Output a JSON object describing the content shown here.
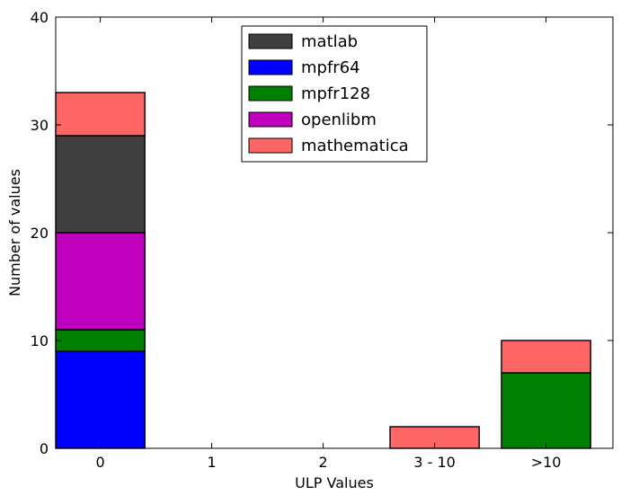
{
  "chart_data": {
    "type": "bar",
    "stacked": true,
    "xlabel": "ULP Values",
    "ylabel": "Number of values",
    "categories": [
      "0",
      "1",
      "2",
      "3 - 10",
      ">10"
    ],
    "ylim": [
      0,
      40
    ],
    "yticks": [
      0,
      10,
      20,
      30,
      40
    ],
    "grid": false,
    "legend_position": "top-center",
    "stack_order": [
      "mpfr64",
      "mpfr128",
      "openlibm",
      "matlab",
      "mathematica"
    ],
    "series": [
      {
        "name": "matlab",
        "color": "#404040",
        "values": [
          9,
          0,
          0,
          0,
          0
        ]
      },
      {
        "name": "mpfr64",
        "color": "#0000ff",
        "values": [
          9,
          0,
          0,
          0,
          0
        ]
      },
      {
        "name": "mpfr128",
        "color": "#008000",
        "values": [
          2,
          0,
          0,
          0,
          7
        ]
      },
      {
        "name": "openlibm",
        "color": "#bf00bf",
        "values": [
          9,
          0,
          0,
          0,
          0
        ]
      },
      {
        "name": "mathematica",
        "color": "#ff6666",
        "values": [
          4,
          0,
          0,
          2,
          3
        ]
      }
    ]
  }
}
